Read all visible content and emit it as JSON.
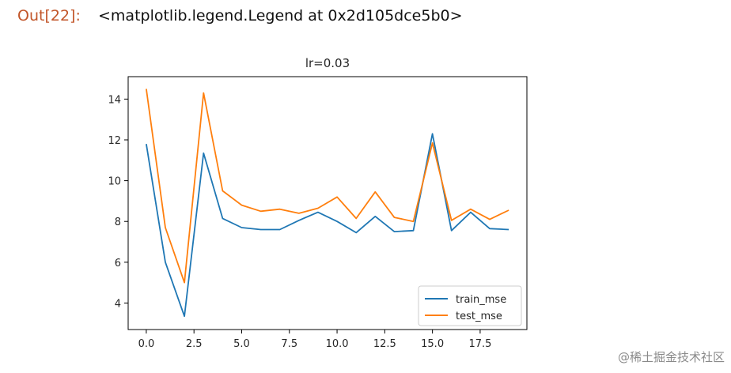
{
  "cell": {
    "prompt": "Out[22]:",
    "output_text": "<matplotlib.legend.Legend at 0x2d105dce5b0>"
  },
  "watermark": "@稀土掘金技术社区",
  "chart_data": {
    "type": "line",
    "title": "lr=0.03",
    "xlabel": "",
    "ylabel": "",
    "x": [
      0,
      1,
      2,
      3,
      4,
      5,
      6,
      7,
      8,
      9,
      10,
      11,
      12,
      13,
      14,
      15,
      16,
      17,
      18,
      19
    ],
    "xlim": [
      -0.95,
      19.95
    ],
    "ylim": [
      2.7,
      15.1
    ],
    "xticks": [
      0.0,
      2.5,
      5.0,
      7.5,
      10.0,
      12.5,
      15.0,
      17.5
    ],
    "xtick_labels": [
      "0.0",
      "2.5",
      "5.0",
      "7.5",
      "10.0",
      "12.5",
      "15.0",
      "17.5"
    ],
    "yticks": [
      4,
      6,
      8,
      10,
      12,
      14
    ],
    "ytick_labels": [
      "4",
      "6",
      "8",
      "10",
      "12",
      "14"
    ],
    "grid": false,
    "legend_position": "lower-right",
    "series": [
      {
        "name": "train_mse",
        "color": "#1f77b4",
        "values": [
          11.8,
          6.0,
          3.35,
          11.35,
          8.15,
          7.7,
          7.6,
          7.6,
          8.05,
          8.45,
          8.0,
          7.45,
          8.25,
          7.5,
          7.55,
          12.3,
          7.55,
          8.45,
          7.65,
          7.6
        ]
      },
      {
        "name": "test_mse",
        "color": "#ff7f0e",
        "values": [
          14.5,
          7.7,
          5.0,
          14.3,
          9.5,
          8.8,
          8.5,
          8.6,
          8.4,
          8.65,
          9.2,
          8.15,
          9.45,
          8.2,
          8.0,
          11.85,
          8.05,
          8.6,
          8.1,
          8.55
        ]
      }
    ]
  }
}
